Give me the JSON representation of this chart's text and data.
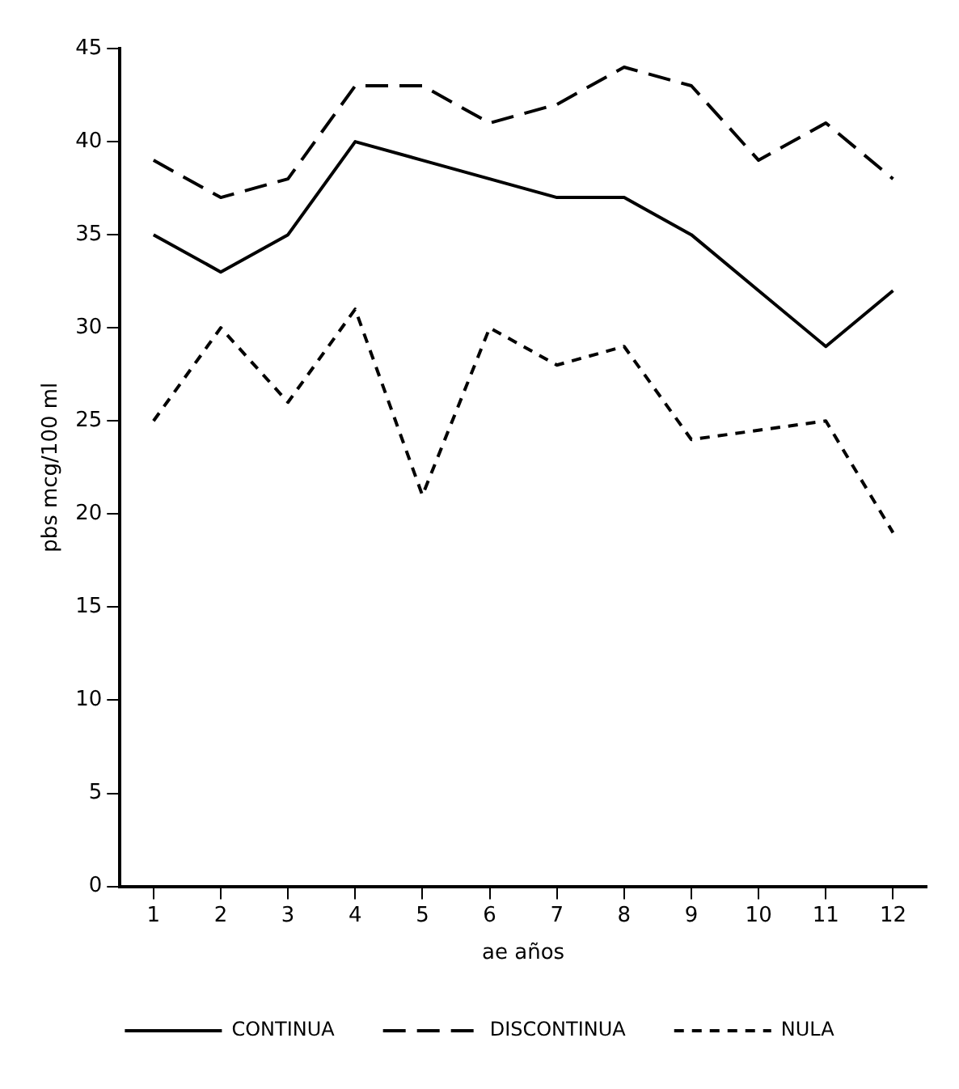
{
  "chart_data": {
    "type": "line",
    "xlabel": "ae años",
    "ylabel": "pbs mcg/100 ml",
    "categories": [
      "1",
      "2",
      "3",
      "4",
      "5",
      "6",
      "7",
      "8",
      "9",
      "10",
      "11",
      "12"
    ],
    "series": [
      {
        "name": "CONTINUA",
        "color": "#000000",
        "line_style": "solid",
        "values": [
          35,
          33,
          35,
          40,
          39,
          38,
          37,
          37,
          35,
          32,
          29,
          32
        ]
      },
      {
        "name": "DISCONTINUA",
        "color": "#000000",
        "line_style": "dashed",
        "values": [
          39,
          37,
          38,
          43,
          43,
          41,
          42,
          44,
          43,
          39,
          41,
          38
        ]
      },
      {
        "name": "NULA",
        "color": "#000000",
        "line_style": "dotted",
        "values": [
          25,
          30,
          26,
          31,
          21,
          30,
          28,
          29,
          24,
          24.5,
          25,
          19
        ]
      }
    ],
    "ylim": [
      0,
      45
    ],
    "yticks": [
      0,
      5,
      10,
      15,
      20,
      25,
      30,
      35,
      40,
      45
    ],
    "grid": false,
    "legend": "bottom",
    "marker": "none"
  }
}
